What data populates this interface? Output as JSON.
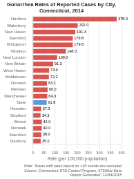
{
  "chart_data": {
    "type": "bar",
    "orientation": "horizontal",
    "title": "Gonorrhea Rates of Reported Cases by City, Connecticut, 2014",
    "xlabel": "Rate (per 100,000 population)",
    "annotations": [
      "Note: Towns with rates based on <20 counts are excluded",
      "Source: Connecticut STD Control Program, STDStat Data\nReport Generated: 12/04/2015"
    ],
    "categories": [
      "Hartford",
      "Waterbury",
      "New Haven",
      "Stamford",
      "Bridgeport",
      "Windsor",
      "New London",
      "New Britain",
      "West Haven",
      "Middletown",
      "Norwich",
      "Meriden",
      "Manchester",
      "State",
      "Hamden",
      "Stratford",
      "Bristol",
      "Norwalk",
      "Stamford",
      "Danbury"
    ],
    "values": [
      378.0,
      202.0,
      191.3,
      179.8,
      179.8,
      148.0,
      109.0,
      91.3,
      73.0,
      72.2,
      63.2,
      66.0,
      64.3,
      61.8,
      37.3,
      34.3,
      40.0,
      40.0,
      38.0,
      35.0
    ],
    "value_labels": [
      "378.0",
      "202.0",
      "191.3",
      "179.8",
      "179.8",
      "148.0",
      "109.0",
      "91.3",
      "73.0",
      "72.2",
      "63.2",
      "66.0",
      "64.3",
      "61.8",
      "37.3",
      "34.3",
      "40.0",
      "40.0",
      "38.0",
      "35.0"
    ],
    "data_labels": true,
    "colors": [
      "#d9534f",
      "#d9534f",
      "#d9534f",
      "#d9534f",
      "#d9534f",
      "#d9534f",
      "#d9534f",
      "#d9534f",
      "#d9534f",
      "#d9534f",
      "#d9534f",
      "#d9534f",
      "#d9534f",
      "#5b9bd5",
      "#d9534f",
      "#d9534f",
      "#d9534f",
      "#d9534f",
      "#d9534f",
      "#d9534f"
    ],
    "xlim": [
      0,
      400
    ],
    "xticks": [
      0,
      50,
      100,
      150,
      200,
      250,
      300,
      350,
      400
    ],
    "grid": true
  }
}
